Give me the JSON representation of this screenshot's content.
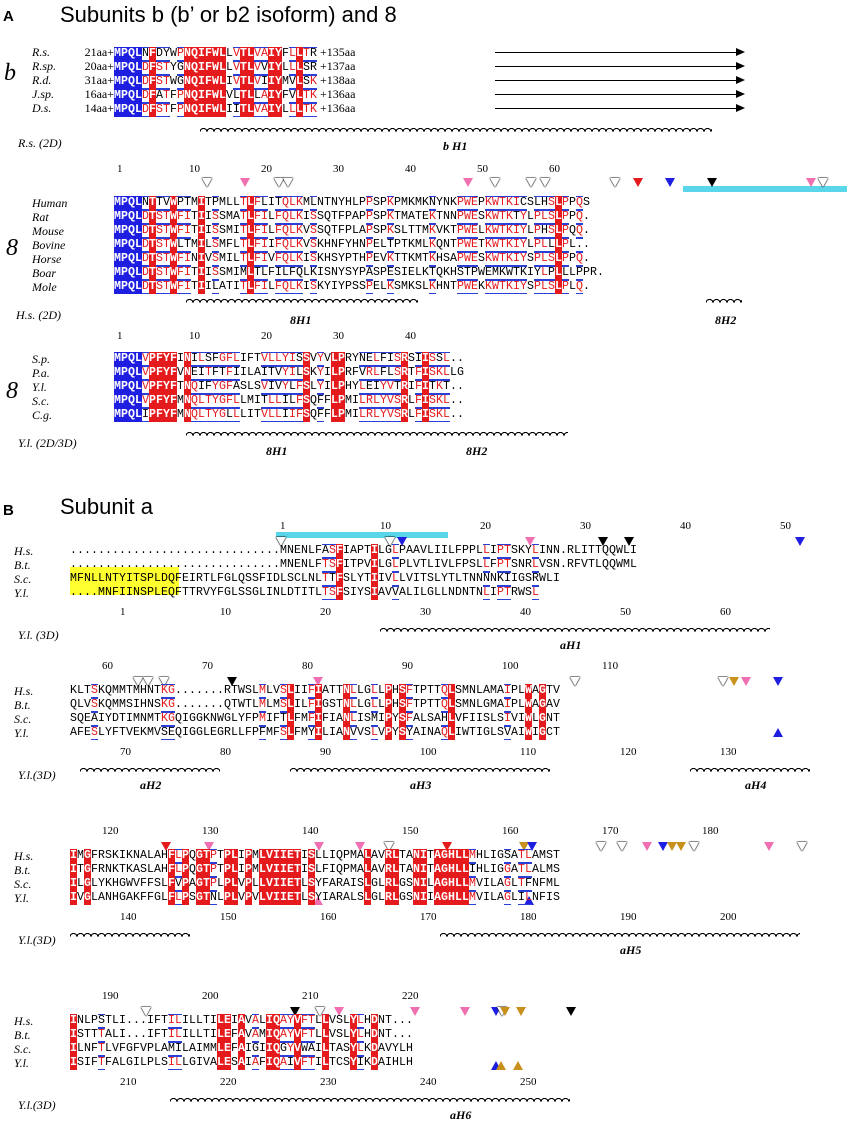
{
  "panelA": {
    "letter": "A",
    "title": "Subunits b (b’ or b2 isoform) and 8",
    "b_group": "b",
    "b_names": [
      "R.s.",
      "R.sp.",
      "R.d.",
      "J.sp.",
      "D.s."
    ],
    "b_prefix": [
      "21aa+",
      "20aa+",
      "31aa+",
      "16aa+",
      "14aa+"
    ],
    "b_seqs": [
      "MPQLNFDYWPNQIFWLLVTLVAIYFLLTR",
      "MPQLDFSTYGNQIFWLLVTLVVIYLLLSR",
      "MPQLDFSTWGNQIFWLIVTLVIIYMVLSK",
      "MPQLDFATFPNQIFWLVLTLLAIYFVLTK",
      "MPQLDFSTFPNQIFWLIITLVAIYLLLTK"
    ],
    "b_suffix": [
      "+135aa",
      "+137aa",
      "+138aa",
      "+136aa",
      "+136aa"
    ],
    "b_ref": "R.s. (2D)",
    "b_helix": "b H1",
    "g8_group": "8",
    "g8_ruler": [
      "1",
      "10",
      "20",
      "30",
      "40",
      "50",
      "60"
    ],
    "g8_names": [
      "Human",
      "Rat",
      "Mouse",
      "Bovine",
      "Horse",
      "Boar",
      "Mole"
    ],
    "g8_seqs": [
      "MPQLNTTVWPTMITPMLLTLFLITQLKMLNTNYHLPPSPKPMKMKNYNKPWEPKWTKICSLHSLPPQS",
      "MPQLDTSTWFITIISSMATLFILFQLKISSQTFPAPPSPKTMATEKTNNPWESKWTKTYLPLSLPPQ.",
      "MPQLDTSTWFITIISSMITLFILFQLKVSSQTFPLAPSPKSLTTMKVKTPWELKWTKIYLPHSLPQQ.",
      "MPQLDTSTWLTMILSMFLTLFIIFQLKVSKHNFYHNPELTPTKMLKQNTPWETKWTKIYLPLLLPL..",
      "MPQLDTSTWFINIVSMILTLFIVFQLKISKHSYPTHPEVKTTKMTKHSAPWESKWTKIYSPLSLPPQ.",
      "MPQLDTSTWFITIISSMIMLTLFILFQLKISNYSYPASPESIELKTQKHSTPWEMKWTKIYLPLLLPPR.",
      "MPQLDTSTWFITIILATITLFILFQLKISKYIYPSSPELKSMKSLKHNTPWEKKWTKIYSPLSLPLQ."
    ],
    "g8_ref": "H.s. (2D)",
    "g8_helix1": "8H1",
    "g8_helix2": "8H2",
    "y8_group": "8",
    "y8_ruler": [
      "1",
      "10",
      "20",
      "30",
      "40"
    ],
    "y8_names": [
      "S.p.",
      "P.a.",
      "Y.l.",
      "S.c.",
      "C.g."
    ],
    "y8_seqs": [
      "MPQLVPFYFINILSFGFLIFTVLLYISSVYVLPRYNELFISRSIISSL..",
      "MPQLVPFYFVNEITFTFIILAITVYILSKYILPRFVRLFLSRTFISKLLG",
      "MPQLVPFYFTNQIFYGFASLSVIVYLFSLYILPHYLEIYVTRIFITKT..",
      "MPQLVPFYFMNQLTYGFLLMITLLILFSQFFLPMILRLYVSRLFISKL..",
      "MPQLIPFYFMNQLTYGLLLITVLLIIFSQFFLPMILRLYVSRLFISKL.."
    ],
    "y8_ref": "Y.l. (2D/3D)",
    "y8_helix1": "8H1",
    "y8_helix2": "8H2"
  },
  "panelB": {
    "letter": "B",
    "title": "Subunit a",
    "names": [
      "H.s.",
      "B.t.",
      "S.c.",
      "Y.l."
    ],
    "blocks": [
      {
        "ruler": [
          "1",
          "10",
          "20",
          "30",
          "40",
          "50"
        ],
        "seqs": [
          "..............................MNENLFASFIAPTILGLPAAVLIILFPPLLIPTSKYLINN.RLITTQQWLI",
          "..............................MNENLFTSFITPVILGLPLVTLIVLFPSLLFPTSNRLVSN.RFVTLQQWML",
          "MFNLLNTYITSPLDQFEIRTLFGLQSSFIDLSCLNLTTFSLYTIIVLLVITSLYTLTNNNNKIIGSRWLI",
          "....MNFIINSPLEQFTTRVYFGLSSGLINLDTITLTSFSIYSIAVVALILGLLNDNTNLIPTRWSL"
        ],
        "ref": "Y.l. (3D)",
        "ruler_bottom": [
          "1",
          "10",
          "20",
          "30",
          "40",
          "50",
          "60"
        ],
        "helices": [
          "aH1"
        ]
      },
      {
        "ruler": [
          "60",
          "70",
          "80",
          "90",
          "100",
          "110"
        ],
        "seqs": [
          "KLTSKQMMTMHNTKG.......RTWSLMLVSLIIFIATTNLLGLLPHSFTPTTQLSMNLAMAIPLWAGTV",
          "QLVSKQMMSIHNSKG.......QTWTLMLMSLILFIGSTNLLGLLPHSFTPTTQLSMNLGMAIPLWAGAV",
          "SQEAIYDTIMNMTKGQIGGKNWGLYFPMIFTLFMFIFIANLISMIPYSFALSAHLVFIISLSIVIWLGNT",
          "AFESLYFTVEKMVSEQIGGLEGRLLFPFMFSLFMYILIANVVSLVPYSYAINAQLIWTIGLSVAIWIGCT"
        ],
        "ref": "Y.l.(3D)",
        "ruler_bottom": [
          "70",
          "80",
          "90",
          "100",
          "110",
          "120",
          "130"
        ],
        "helices": [
          "aH2",
          "aH3",
          "aH4"
        ]
      },
      {
        "ruler": [
          "120",
          "130",
          "140",
          "150",
          "160",
          "170",
          "180"
        ],
        "seqs": [
          "IMGFRSKIKNALAHFLPQGTPTPLIPMLVIIETISLLIQPMALAVRLTANITAGHLLMHLIGSATLAMST",
          "ITGFRNKTKASLAHFLPQGTPTPLIPMLVIIETISLFIQPMALAVRLTANITAGHLLIHLIGGATLALMS",
          "ILGLYKHGWVFFSLFVPAGTPLPLVPLLVIIETLSYFARAISLGLRLGSNILAGHLLMVILAGLTFNFML",
          "IVGLANHGAKFFGLFLPSGTNLPLVPVLVIIETLSYIARALSLGLRLGSNIIAGHLLMVILAGLILNFIS"
        ],
        "ref": "Y.l.(3D)",
        "ruler_bottom": [
          "140",
          "150",
          "160",
          "170",
          "180",
          "190",
          "200"
        ],
        "helices": [
          "aH5"
        ]
      },
      {
        "ruler": [
          "190",
          "200",
          "210",
          "220"
        ],
        "seqs": [
          "INLPSTLI...IFTILILLTILEIAVALIQAYVFTLLVSLYLHDNT...",
          "ISTTTALI...IFTILILLTILEFAVAMIQAYVFTLLVSLYLHDNT...",
          "ILNFTLVFGFVPLAMILAIMMLEFAIGIIQGYVWAILTASYLKDAVYLH",
          "ISIFTFALGILPLSILLGIVALESAIAFIQAIVFTILTCSYIKDAIHLH"
        ],
        "ref": "Y.l.(3D)",
        "ruler_bottom": [
          "210",
          "220",
          "230",
          "240",
          "250"
        ],
        "helices": [
          "aH6"
        ]
      }
    ]
  },
  "colors": {
    "red": "#e41a1c",
    "blue": "#1e1ee0",
    "box_blue": "#2a3fd6",
    "cyan": "#5ad6ea",
    "pink": "#f06fb0",
    "gold": "#c8901c",
    "black": "#000000"
  }
}
